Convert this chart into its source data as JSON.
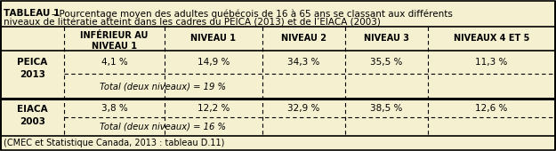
{
  "title_bold": "TABLEAU 1",
  "title_sep": "–",
  "title_rest": "Pourcentage moyen des adultes québécois de 16 à 65 ans se classant aux différents\nniveaux de littératie atteint dans les cadres du PEICA (2013) et de l’EIACA (2003)",
  "col_headers": [
    "INFÉRIEUR AU\nNIVEAU 1",
    "NIVEAU 1",
    "NIVEAU 2",
    "NIVEAU 3",
    "NIVEAUX 4 ET 5"
  ],
  "row1_label_top": "PEICA",
  "row1_label_bot": "2013",
  "row1_values": [
    "4,1 %",
    "14,9 %",
    "34,3 %",
    "35,5 %",
    "11,3 %"
  ],
  "row1_total": "Total (deux niveaux) = 19 %",
  "row2_label_top": "EIACA",
  "row2_label_bot": "2003",
  "row2_values": [
    "3,8 %",
    "12,2 %",
    "32,9 %",
    "38,5 %",
    "12,6 %"
  ],
  "row2_total": "Total (deux niveaux) = 16 %",
  "footnote": "(CMEC et Statistique Canada, 2013 : tableau D.11)",
  "bg_color": "#f5f0d0",
  "border_color": "#000000",
  "text_color": "#000000"
}
